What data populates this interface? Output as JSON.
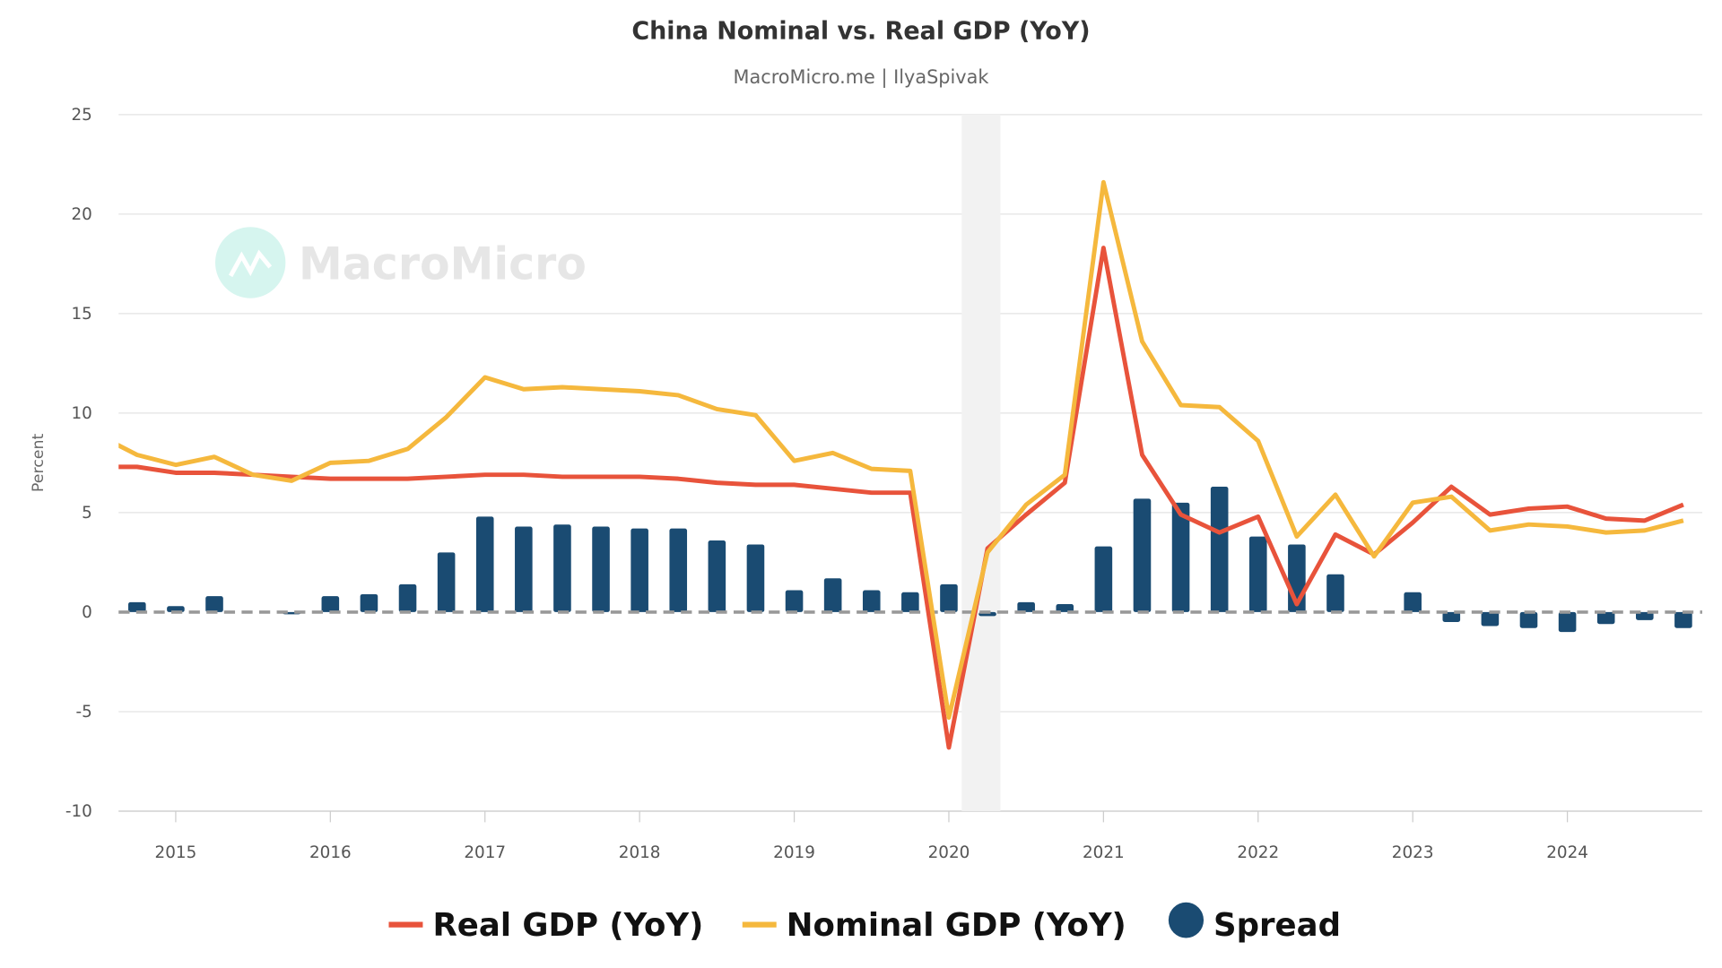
{
  "chart_data": {
    "type": "line",
    "title": "China Nominal vs. Real GDP (YoY)",
    "subtitle": "MacroMicro.me | IlyaSpivak",
    "watermark": "MacroMicro",
    "ylabel": "Percent",
    "xlabel": "",
    "ylim": [
      -10,
      25
    ],
    "yticks": [
      25,
      20,
      15,
      10,
      5,
      0,
      -5,
      -10
    ],
    "xlim": [
      "2014-08",
      "2024-11"
    ],
    "xticks": [
      "2015",
      "2016",
      "2017",
      "2018",
      "2019",
      "2020",
      "2021",
      "2022",
      "2023",
      "2024"
    ],
    "grid": true,
    "legend_position": "bottom",
    "recession_shading": [
      "2020-02",
      "2020-05"
    ],
    "zero_line": "dashed",
    "x": [
      "2014-07",
      "2014-10",
      "2015-01",
      "2015-04",
      "2015-07",
      "2015-10",
      "2016-01",
      "2016-04",
      "2016-07",
      "2016-10",
      "2017-01",
      "2017-04",
      "2017-07",
      "2017-10",
      "2018-01",
      "2018-04",
      "2018-07",
      "2018-10",
      "2019-01",
      "2019-04",
      "2019-07",
      "2019-10",
      "2020-01",
      "2020-04",
      "2020-07",
      "2020-10",
      "2021-01",
      "2021-04",
      "2021-07",
      "2021-10",
      "2022-01",
      "2022-04",
      "2022-07",
      "2022-10",
      "2023-01",
      "2023-04",
      "2023-07",
      "2023-10",
      "2024-01",
      "2024-04",
      "2024-07",
      "2024-10"
    ],
    "series": [
      {
        "name": "Real GDP (YoY)",
        "type": "line",
        "color": "#e8533b",
        "values": [
          7.3,
          7.3,
          7.0,
          7.0,
          6.9,
          6.8,
          6.7,
          6.7,
          6.7,
          6.8,
          6.9,
          6.9,
          6.8,
          6.8,
          6.8,
          6.7,
          6.5,
          6.4,
          6.4,
          6.2,
          6.0,
          6.0,
          -6.8,
          3.2,
          4.9,
          6.5,
          18.3,
          7.9,
          4.9,
          4.0,
          4.8,
          0.4,
          3.9,
          2.9,
          4.5,
          6.3,
          4.9,
          5.2,
          5.3,
          4.7,
          4.6,
          5.4
        ]
      },
      {
        "name": "Nominal GDP (YoY)",
        "type": "line",
        "color": "#f5b83d",
        "values": [
          8.9,
          7.9,
          7.4,
          7.8,
          6.9,
          6.6,
          7.5,
          7.6,
          8.2,
          9.8,
          11.8,
          11.2,
          11.3,
          11.2,
          11.1,
          10.9,
          10.2,
          9.9,
          7.6,
          8.0,
          7.2,
          7.1,
          -5.3,
          3.0,
          5.4,
          6.9,
          21.6,
          13.6,
          10.4,
          10.3,
          8.6,
          3.8,
          5.9,
          2.8,
          5.5,
          5.8,
          4.1,
          4.4,
          4.3,
          4.0,
          4.1,
          4.6
        ]
      },
      {
        "name": "Spread",
        "type": "bar",
        "color": "#1a4b72",
        "values": [
          null,
          0.5,
          0.3,
          0.8,
          0.0,
          -0.1,
          0.8,
          0.9,
          1.4,
          3.0,
          4.8,
          4.3,
          4.4,
          4.3,
          4.2,
          4.2,
          3.6,
          3.4,
          1.1,
          1.7,
          1.1,
          1.0,
          1.4,
          -0.2,
          0.5,
          0.4,
          3.3,
          5.7,
          5.5,
          6.3,
          3.8,
          3.4,
          1.9,
          0.0,
          1.0,
          -0.5,
          -0.7,
          -0.8,
          -1.0,
          -0.6,
          -0.4,
          -0.8
        ]
      }
    ]
  }
}
